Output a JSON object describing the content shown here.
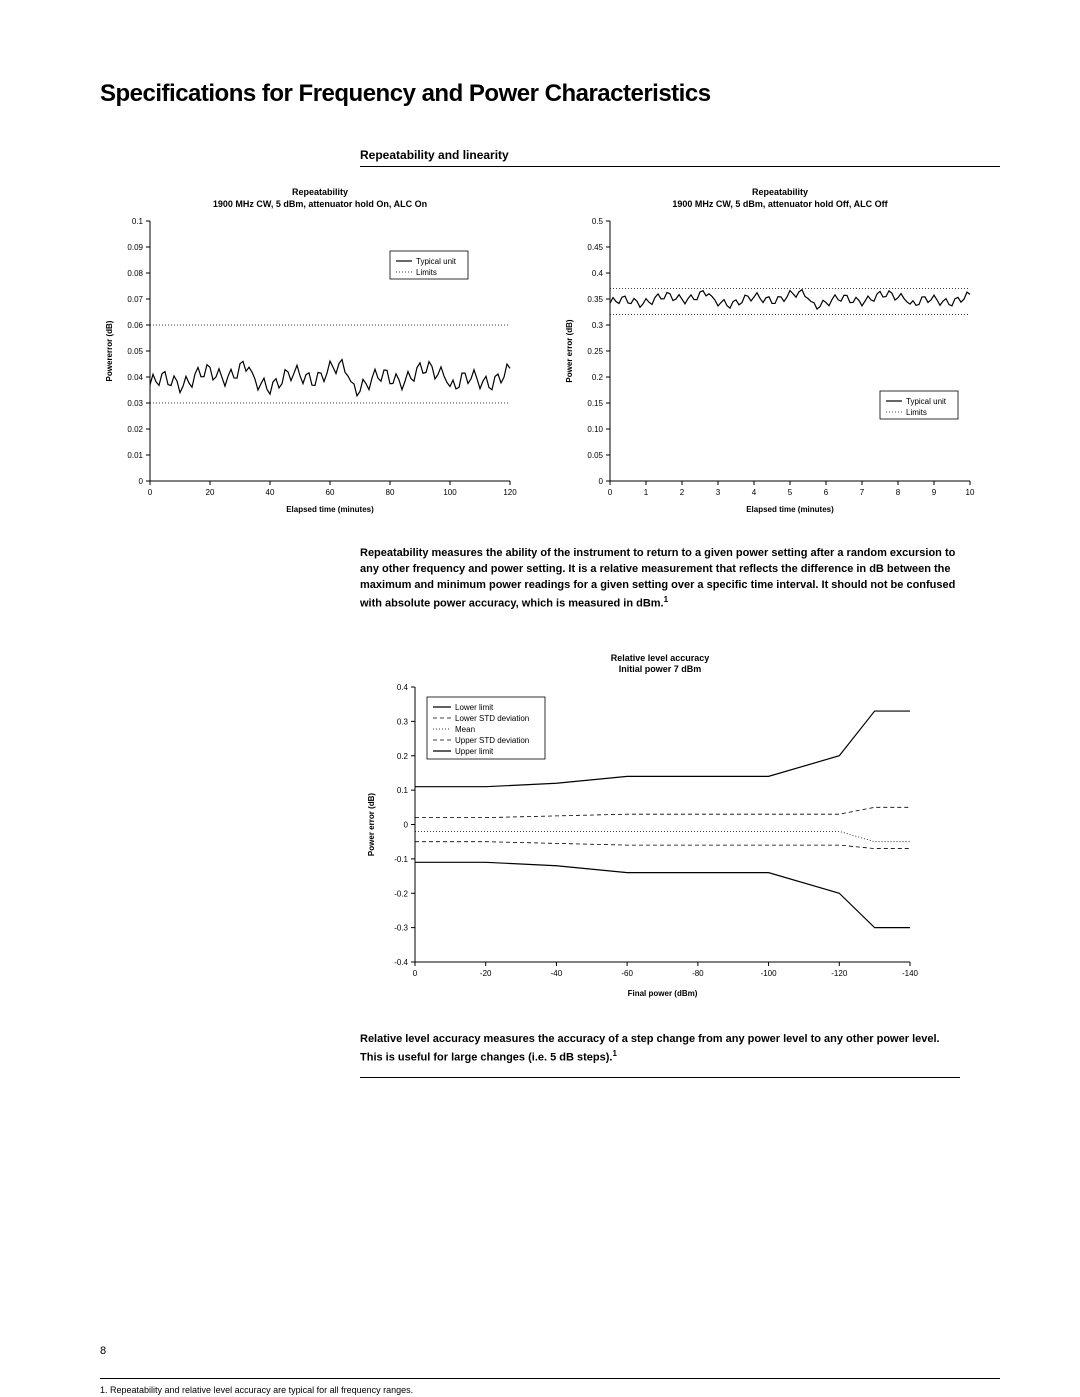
{
  "page_title": "Specifications for Frequency and Power Characteristics",
  "section_subtitle": "Repeatability and linearity",
  "page_number": "8",
  "footnote": "1.  Repeatability and relative level accuracy are typical  for all frequency ranges.",
  "para1": "Repeatability measures the ability of the instrument to return to a given power setting after a random excursion to any other frequency and power setting. It is a relative measurement that reflects the difference in dB between the maximum and minimum power readings for a given setting over a specific time interval. It should not be confused with absolute power accuracy, which is measured in dBm.",
  "para1_sup": "1",
  "para2": "Relative level accuracy measures the accuracy of a step change from any power level to any other power level. This is useful for large changes (i.e. 5 dB steps).",
  "para2_sup": "1",
  "legend": {
    "typical": "Typical unit",
    "limits": "Limits",
    "lower_limit": "Lower limit",
    "lower_std": "Lower STD deviation",
    "mean": "Mean",
    "upper_std": "Upper STD deviation",
    "upper_limit": "Upper limit"
  },
  "chart1": {
    "title_l1": "Repeatability",
    "title_l2": "1900 MHz CW, 5 dBm, attenuator hold On, ALC On",
    "xlabel": "Elapsed time (minutes)",
    "ylabel": "Powererror (dB)",
    "xmin": 0,
    "xmax": 120,
    "xtick_step": 20,
    "ymin": 0,
    "ymax": 0.1,
    "yticks": [
      "0",
      "0.01",
      "0.02",
      "0.03",
      "0.04",
      "0.05",
      "0.06",
      "0.07",
      "0.08",
      "0.09",
      "0.1"
    ],
    "limit_upper": 0.06,
    "limit_lower": 0.03,
    "data_y": 0.04,
    "noise": 0.003,
    "line_color": "#000000",
    "limit_color": "#000000",
    "bg": "#ffffff"
  },
  "chart2": {
    "title_l1": "Repeatability",
    "title_l2": "1900 MHz CW, 5 dBm, attenuator hold Off, ALC Off",
    "xlabel": "Elapsed time (minutes)",
    "ylabel": "Power error (dB)",
    "xmin": 0,
    "xmax": 10,
    "xtick_step": 1,
    "ymin": 0,
    "ymax": 0.5,
    "yticks": [
      "0",
      "0.05",
      "0.10",
      "0.15",
      "0.2",
      "0.25",
      "0.3",
      "0.35",
      "0.4",
      "0.45",
      "0.5"
    ],
    "limit_upper": 0.37,
    "limit_lower": 0.32,
    "data_y": 0.35,
    "noise": 0.008,
    "line_color": "#000000",
    "limit_color": "#000000",
    "bg": "#ffffff"
  },
  "chart3": {
    "title_l1": "Relative level accuracy",
    "title_l2": "Initial power 7 dBm",
    "xlabel": "Final power (dBm)",
    "ylabel": "Power error (dB)",
    "xticks": [
      "0",
      "-20",
      "-40",
      "-60",
      "-80",
      "-100",
      "-120",
      "-140"
    ],
    "ymin": -0.4,
    "ymax": 0.4,
    "ytick_step": 0.1,
    "series": {
      "upper_limit": [
        0.11,
        0.11,
        0.12,
        0.14,
        0.14,
        0.14,
        0.2,
        0.33,
        0.33
      ],
      "upper_std": [
        0.02,
        0.02,
        0.025,
        0.03,
        0.03,
        0.03,
        0.03,
        0.05,
        0.05
      ],
      "mean": [
        -0.02,
        -0.02,
        -0.02,
        -0.02,
        -0.02,
        -0.02,
        -0.02,
        -0.05,
        -0.05
      ],
      "lower_std": [
        -0.05,
        -0.05,
        -0.055,
        -0.06,
        -0.06,
        -0.06,
        -0.06,
        -0.07,
        -0.07
      ],
      "lower_limit": [
        -0.11,
        -0.11,
        -0.12,
        -0.14,
        -0.14,
        -0.14,
        -0.2,
        -0.3,
        -0.3
      ]
    },
    "line_color": "#000000",
    "bg": "#ffffff"
  }
}
